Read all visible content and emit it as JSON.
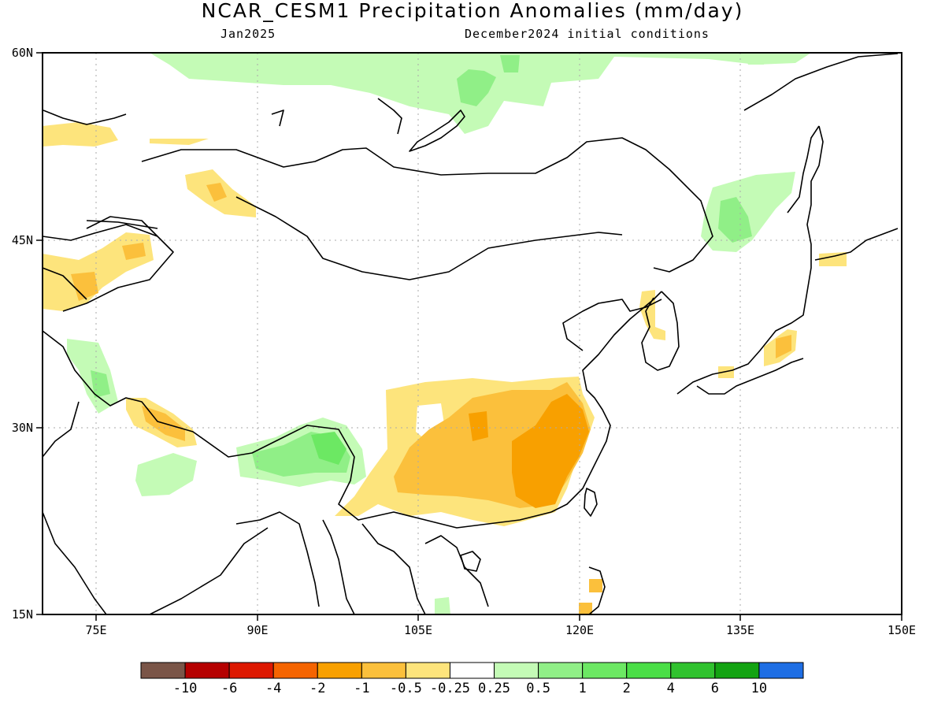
{
  "header": {
    "title": "NCAR_CESM1 Precipitation Anomalies (mm/day)",
    "month": "Jan2025",
    "initial_conditions": "December2024 initial conditions"
  },
  "axes": {
    "lon_ticks": [
      "75E",
      "90E",
      "105E",
      "120E",
      "135E",
      "150E"
    ],
    "lat_ticks": [
      "60N",
      "45N",
      "30N",
      "15N"
    ]
  },
  "colorbar": {
    "labels": [
      "-10",
      "-6",
      "-4",
      "-2",
      "-1",
      "-0.5",
      "-0.25",
      "0.25",
      "0.5",
      "1",
      "2",
      "4",
      "6",
      "10"
    ],
    "colors": [
      "#7a5548",
      "#b50000",
      "#dd1800",
      "#f56400",
      "#f8a000",
      "#fbc03c",
      "#fde47c",
      "#ffffff",
      "#c4fbb6",
      "#90ef87",
      "#6ce863",
      "#4ade46",
      "#30c22e",
      "#13a312",
      "#1e6ee4"
    ]
  },
  "map": {
    "lon_range": [
      70,
      150
    ],
    "lat_range": [
      15,
      60
    ],
    "colors": {
      "dry_light": "#fde47c",
      "dry_mid": "#fbc03c",
      "dry_strong": "#f8a000",
      "wet_light": "#c4fbb6",
      "wet_mid": "#90ef87",
      "wet_strong": "#6ce863"
    }
  }
}
